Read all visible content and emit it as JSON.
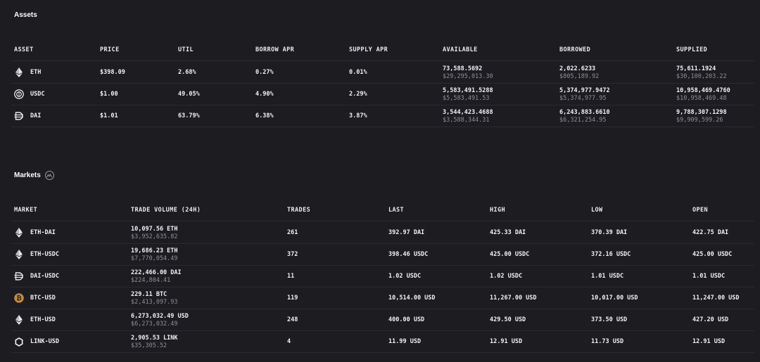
{
  "assets": {
    "title": "Assets",
    "headers": {
      "asset": "ASSET",
      "price": "PRICE",
      "util": "UTIL",
      "borrow_apr": "BORROW APR",
      "supply_apr": "SUPPLY APR",
      "available": "AVAILABLE",
      "borrowed": "BORROWED",
      "supplied": "SUPPLIED"
    },
    "rows": [
      {
        "icon": "eth-icon",
        "asset": "ETH",
        "price": "$398.09",
        "util": "2.68%",
        "borrow_apr": "0.27%",
        "supply_apr": "0.01%",
        "available": "73,588.5692",
        "available_usd": "$29,295,013.30",
        "borrowed": "2,022.6233",
        "borrowed_usd": "$805,189.92",
        "supplied": "75,611.1924",
        "supplied_usd": "$30,100,203.22"
      },
      {
        "icon": "usdc-icon",
        "asset": "USDC",
        "price": "$1.00",
        "util": "49.05%",
        "borrow_apr": "4.90%",
        "supply_apr": "2.29%",
        "available": "5,583,491.5288",
        "available_usd": "$5,583,491.53",
        "borrowed": "5,374,977.9472",
        "borrowed_usd": "$5,374,977.95",
        "supplied": "10,958,469.4760",
        "supplied_usd": "$10,958,469.48"
      },
      {
        "icon": "dai-icon",
        "asset": "DAI",
        "price": "$1.01",
        "util": "63.79%",
        "borrow_apr": "6.38%",
        "supply_apr": "3.87%",
        "available": "3,544,423.4688",
        "available_usd": "$3,588,344.31",
        "borrowed": "6,243,883.6610",
        "borrowed_usd": "$6,321,254.95",
        "supplied": "9,788,307.1298",
        "supplied_usd": "$9,909,599.26"
      }
    ]
  },
  "markets": {
    "title": "Markets",
    "title_icon": "markets-chart-icon",
    "headers": {
      "market": "MARKET",
      "volume": "TRADE VOLUME (24H)",
      "trades": "TRADES",
      "last": "LAST",
      "high": "HIGH",
      "low": "LOW",
      "open": "OPEN"
    },
    "rows": [
      {
        "icon": "eth-icon",
        "market": "ETH-DAI",
        "volume": "10,097.56 ETH",
        "volume_usd": "$3,952,635.82",
        "trades": "261",
        "last": "392.97 DAI",
        "high": "425.33 DAI",
        "low": "370.39 DAI",
        "open": "422.75 DAI"
      },
      {
        "icon": "eth-icon",
        "market": "ETH-USDC",
        "volume": "19,686.23 ETH",
        "volume_usd": "$7,770,054.49",
        "trades": "372",
        "last": "398.46 USDC",
        "high": "425.00 USDC",
        "low": "372.16 USDC",
        "open": "425.00 USDC"
      },
      {
        "icon": "dai-icon",
        "market": "DAI-USDC",
        "volume": "222,466.00 DAI",
        "volume_usd": "$224,804.41",
        "trades": "11",
        "last": "1.02 USDC",
        "high": "1.02 USDC",
        "low": "1.01 USDC",
        "open": "1.01 USDC"
      },
      {
        "icon": "btc-icon",
        "market": "BTC-USD",
        "volume": "229.11 BTC",
        "volume_usd": "$2,413,097.93",
        "trades": "119",
        "last": "10,514.00 USD",
        "high": "11,267.00 USD",
        "low": "10,017.00 USD",
        "open": "11,247.00 USD"
      },
      {
        "icon": "eth-icon",
        "market": "ETH-USD",
        "volume": "6,273,032.49 USD",
        "volume_usd": "$6,273,032.49",
        "trades": "248",
        "last": "400.00 USD",
        "high": "429.50 USD",
        "low": "373.50 USD",
        "open": "427.20 USD"
      },
      {
        "icon": "link-icon",
        "market": "LINK-USD",
        "volume": "2,905.53 LINK",
        "volume_usd": "$35,305.52",
        "trades": "4",
        "last": "11.99 USD",
        "high": "12.91 USD",
        "low": "11.73 USD",
        "open": "12.91 USD"
      }
    ]
  },
  "colors": {
    "background": "#1c1c21",
    "separator": "#2a2a31",
    "text_primary": "#f1f1f4",
    "text_secondary": "#8e8e99",
    "btc_orange": "#c58a3e"
  }
}
